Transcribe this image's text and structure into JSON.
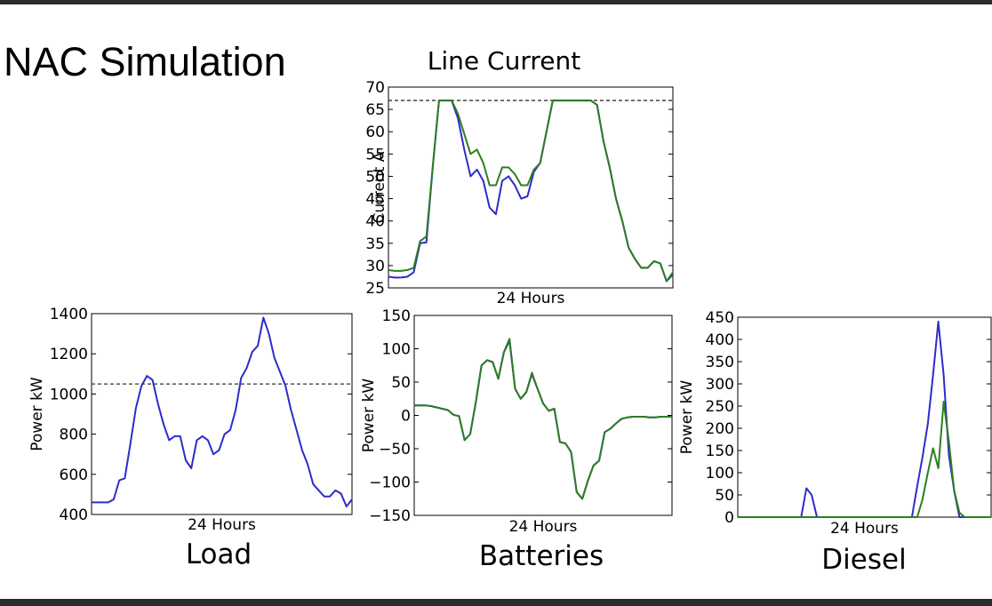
{
  "slide": {
    "title": "NAC Simulation"
  },
  "captions": {
    "load": "Load",
    "batteries": "Batteries",
    "diesel": "Diesel"
  },
  "chart_data": [
    {
      "id": "line-current",
      "type": "line",
      "title": "Line Current",
      "xlabel": "24 Hours",
      "ylabel": "Current A",
      "xlim": [
        0,
        48
      ],
      "ylim": [
        25,
        70
      ],
      "yticks": [
        25,
        30,
        35,
        40,
        45,
        50,
        55,
        60,
        65,
        70
      ],
      "reference_line": {
        "y": 67,
        "style": "dashed"
      },
      "grid": false,
      "series": [
        {
          "color": "#2c2ccc",
          "values": [
            27.5,
            27.3,
            27.3,
            27.5,
            28.5,
            35.0,
            35.2,
            52.0,
            67.0,
            67.0,
            67.0,
            63.0,
            56.0,
            50.0,
            51.5,
            49.0,
            43.0,
            41.5,
            49.0,
            50.0,
            48.0,
            45.0,
            45.5,
            51.0,
            53.0,
            60.0,
            67.0,
            67.0,
            67.0,
            67.0,
            67.0,
            67.0,
            67.0,
            66.0,
            58.0,
            52.0,
            45.0,
            40.0,
            34.0,
            31.5,
            29.5,
            29.5,
            31.0,
            30.5,
            26.5,
            28.0
          ]
        },
        {
          "color": "#2e7d22",
          "values": [
            29.0,
            28.8,
            28.8,
            29.0,
            29.5,
            35.5,
            36.5,
            52.0,
            67.0,
            67.0,
            67.0,
            64.0,
            59.5,
            55.0,
            56.0,
            53.0,
            48.0,
            48.0,
            52.0,
            52.0,
            50.5,
            48.0,
            48.0,
            51.5,
            53.0,
            60.0,
            67.0,
            67.0,
            67.0,
            67.0,
            67.0,
            67.0,
            67.0,
            66.0,
            58.0,
            52.0,
            45.0,
            40.0,
            34.0,
            31.5,
            29.5,
            29.5,
            31.0,
            30.5,
            26.5,
            28.5
          ]
        }
      ]
    },
    {
      "id": "load",
      "type": "line",
      "title": "",
      "xlabel": "24 Hours",
      "ylabel": "Power kW",
      "xlim": [
        0,
        48
      ],
      "ylim": [
        400,
        1400
      ],
      "yticks": [
        400,
        600,
        800,
        1000,
        1200,
        1400
      ],
      "reference_line": {
        "y": 1050,
        "style": "dashed"
      },
      "grid": false,
      "series": [
        {
          "color": "#2c2ccc",
          "values": [
            460,
            460,
            460,
            460,
            475,
            570,
            580,
            750,
            930,
            1040,
            1090,
            1070,
            950,
            850,
            770,
            790,
            790,
            670,
            630,
            770,
            790,
            770,
            700,
            720,
            800,
            820,
            920,
            1080,
            1130,
            1210,
            1240,
            1380,
            1300,
            1180,
            1110,
            1040,
            920,
            820,
            720,
            650,
            550,
            520,
            490,
            490,
            520,
            505,
            440,
            475
          ]
        }
      ]
    },
    {
      "id": "batteries",
      "type": "line",
      "title": "",
      "xlabel": "24 Hours",
      "ylabel": "Power kW",
      "xlim": [
        0,
        48
      ],
      "ylim": [
        -150,
        150
      ],
      "yticks": [
        -150,
        -100,
        -50,
        0,
        50,
        100,
        150
      ],
      "grid": false,
      "series": [
        {
          "color": "#2c2ccc",
          "values": [
            15,
            15,
            15,
            14,
            12,
            10,
            8,
            1,
            -1,
            -37,
            -28,
            20,
            75,
            83,
            80,
            55,
            95,
            112,
            40,
            25,
            35,
            62,
            40,
            18,
            7,
            10,
            -40,
            -42,
            -55,
            -115,
            -125,
            -98,
            -75,
            -68,
            -25,
            -20,
            -12,
            -5,
            -3,
            -2,
            -2,
            -2,
            -3,
            -3,
            -2,
            -2,
            -2
          ]
        },
        {
          "color": "#2e7d22",
          "values": [
            15,
            15,
            15,
            14,
            12,
            10,
            8,
            1,
            -1,
            -37,
            -28,
            20,
            75,
            83,
            80,
            55,
            95,
            115,
            40,
            25,
            35,
            64,
            40,
            18,
            7,
            10,
            -40,
            -42,
            -55,
            -115,
            -125,
            -98,
            -75,
            -68,
            -25,
            -20,
            -12,
            -5,
            -3,
            -2,
            -2,
            -2,
            -3,
            -3,
            -2,
            -2,
            -2
          ]
        }
      ]
    },
    {
      "id": "diesel",
      "type": "line",
      "title": "",
      "xlabel": "24 Hours",
      "ylabel": "Power kW",
      "xlim": [
        0,
        48
      ],
      "ylim": [
        0,
        450
      ],
      "yticks": [
        0,
        50,
        100,
        150,
        200,
        250,
        300,
        350,
        400,
        450
      ],
      "grid": false,
      "series": [
        {
          "color": "#2c2ccc",
          "values": [
            0,
            0,
            0,
            0,
            0,
            0,
            0,
            0,
            0,
            0,
            0,
            0,
            0,
            65,
            50,
            0,
            0,
            0,
            0,
            0,
            0,
            0,
            0,
            0,
            0,
            0,
            0,
            0,
            0,
            0,
            0,
            0,
            0,
            0,
            70,
            135,
            210,
            320,
            440,
            320,
            140,
            60,
            0,
            0,
            0,
            0,
            0,
            0,
            0
          ]
        },
        {
          "color": "#2e7d22",
          "values": [
            0,
            0,
            0,
            0,
            0,
            0,
            0,
            0,
            0,
            0,
            0,
            0,
            0,
            0,
            0,
            0,
            0,
            0,
            0,
            0,
            0,
            0,
            0,
            0,
            0,
            0,
            0,
            0,
            0,
            0,
            0,
            0,
            0,
            0,
            0,
            40,
            100,
            155,
            110,
            260,
            170,
            60,
            10,
            0,
            0,
            0,
            0,
            0,
            0
          ]
        }
      ]
    }
  ]
}
